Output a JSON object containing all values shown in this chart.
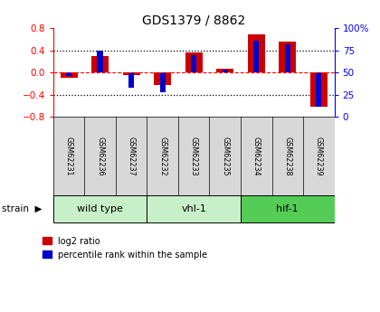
{
  "title": "GDS1379 / 8862",
  "samples": [
    "GSM62231",
    "GSM62236",
    "GSM62237",
    "GSM62232",
    "GSM62233",
    "GSM62235",
    "GSM62234",
    "GSM62238",
    "GSM62239"
  ],
  "log2_ratio": [
    -0.09,
    0.3,
    -0.05,
    -0.22,
    0.36,
    0.07,
    0.68,
    0.56,
    -0.62
  ],
  "percentile": [
    46,
    75,
    33,
    28,
    70,
    53,
    86,
    82,
    12
  ],
  "groups": [
    {
      "label": "wild type",
      "start": 0,
      "end": 3,
      "color": "#c8f0c8"
    },
    {
      "label": "vhl-1",
      "start": 3,
      "end": 6,
      "color": "#c8f0c8"
    },
    {
      "label": "hif-1",
      "start": 6,
      "end": 9,
      "color": "#55cc55"
    }
  ],
  "ylim": [
    -0.8,
    0.8
  ],
  "yticks": [
    -0.8,
    -0.4,
    0.0,
    0.4,
    0.8
  ],
  "right_yticks": [
    0,
    25,
    50,
    75,
    100
  ],
  "bar_color_red": "#cc0000",
  "bar_color_blue": "#0000cc",
  "bg_color": "#d8d8d8",
  "plot_bg": "#ffffff",
  "legend_red": "log2 ratio",
  "legend_blue": "percentile rank within the sample",
  "red_bar_width": 0.55,
  "blue_bar_width": 0.18
}
